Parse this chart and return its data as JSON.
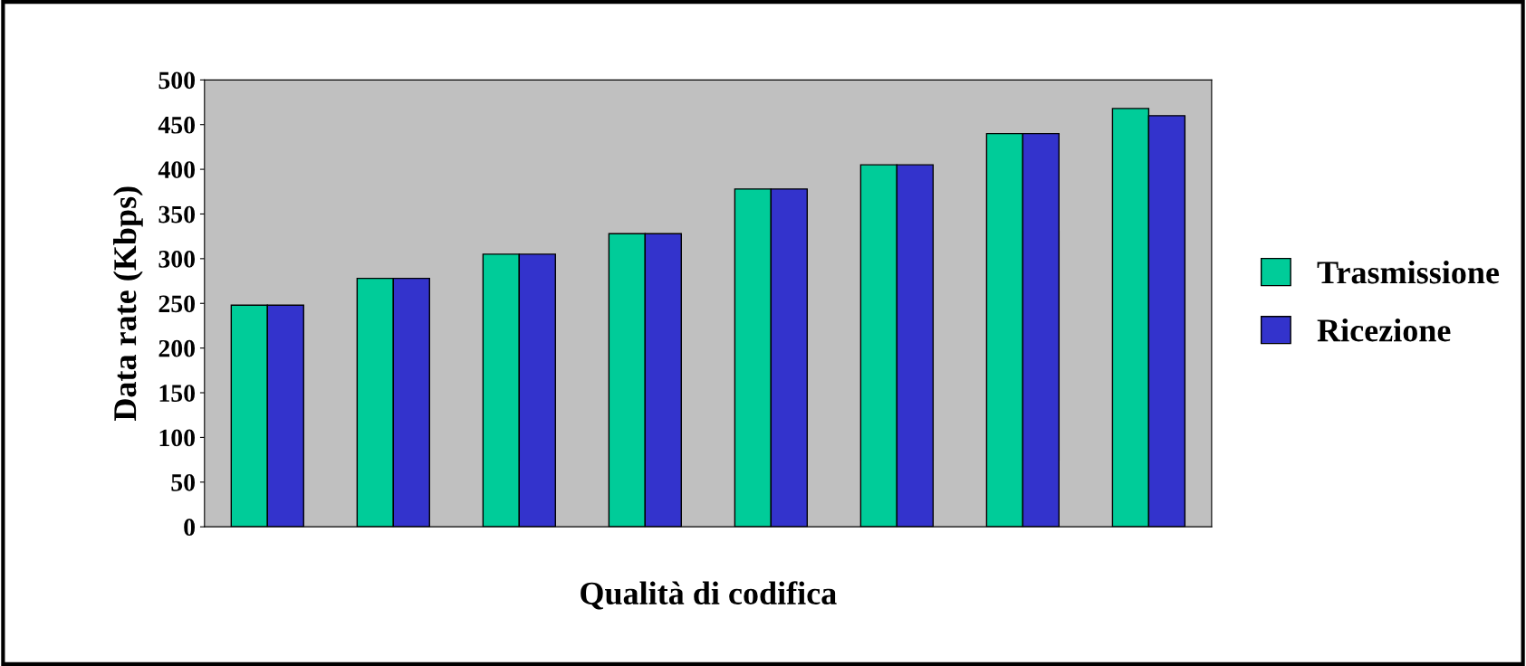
{
  "chart_data": {
    "type": "bar",
    "xlabel": "Qualità di codifica",
    "ylabel": "Data rate (Kbps)",
    "categories": [
      null,
      null,
      null,
      null,
      null,
      null,
      null,
      null
    ],
    "series": [
      {
        "name": "Trasmissione",
        "color": "#00cc99",
        "values": [
          248,
          278,
          305,
          328,
          378,
          405,
          440,
          468
        ]
      },
      {
        "name": "Ricezione",
        "color": "#3333cc",
        "values": [
          248,
          278,
          305,
          328,
          378,
          405,
          440,
          460
        ]
      }
    ],
    "ylim": [
      0,
      500
    ],
    "yticks": [
      0,
      50,
      100,
      150,
      200,
      250,
      300,
      350,
      400,
      450,
      500
    ],
    "grid": false,
    "legend": "right"
  }
}
